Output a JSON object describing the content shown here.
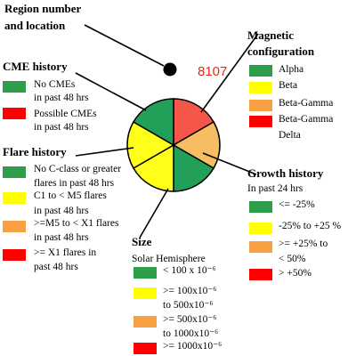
{
  "region": {
    "title": [
      "Region number",
      "and location"
    ],
    "number": "8107"
  },
  "magnetic": {
    "title": [
      "Magnetic",
      "configuration"
    ],
    "items": [
      {
        "color": "#2e9e4a",
        "lines": [
          "Alpha"
        ]
      },
      {
        "color": "#ffff00",
        "lines": [
          "Beta"
        ]
      },
      {
        "color": "#f7a043",
        "lines": [
          "Beta-Gamma"
        ]
      },
      {
        "color": "#ff0000",
        "lines": [
          "Beta-Gamma",
          "Delta"
        ]
      }
    ]
  },
  "cme": {
    "title": [
      "CME history"
    ],
    "items": [
      {
        "color": "#2e9e4a",
        "lines": [
          "No CMEs",
          "in past 48 hrs"
        ]
      },
      {
        "color": "#ff0000",
        "lines": [
          "Possible CMEs",
          "in past 48 hrs"
        ]
      }
    ]
  },
  "flare": {
    "title": [
      "Flare history"
    ],
    "items": [
      {
        "color": "#2e9e4a",
        "lines": [
          "No C-class or greater",
          "flares in past 48 hrs"
        ]
      },
      {
        "color": "#ffff00",
        "lines": [
          "C1 to < M5 flares",
          "in past 48 hrs"
        ]
      },
      {
        "color": "#f7a043",
        "lines": [
          ">=M5 to < X1 flares",
          "in past 48 hrs"
        ]
      },
      {
        "color": "#ff0000",
        "lines": [
          ">= X1 flares in",
          "past 48 hrs"
        ]
      }
    ]
  },
  "growth": {
    "title": [
      "Growth history",
      "In past 24 hrs"
    ],
    "items": [
      {
        "color": "#2e9e4a",
        "lines": [
          "<= -25%"
        ]
      },
      {
        "color": "#ffff00",
        "lines": [
          "-25% to +25 %"
        ]
      },
      {
        "color": "#f7a043",
        "lines": [
          ">= +25% to",
          "< 50%"
        ]
      },
      {
        "color": "#ff0000",
        "lines": [
          "> +50%"
        ]
      }
    ]
  },
  "size": {
    "title": [
      "Size",
      "Solar Hemisphere"
    ],
    "items": [
      {
        "color": "#2e9e4a",
        "lines": [
          "< 100 x 10⁻⁶"
        ]
      },
      {
        "color": "#ffff00",
        "lines": [
          ">= 100x10⁻⁶",
          "to 500x10⁻⁶"
        ]
      },
      {
        "color": "#f7a043",
        "lines": [
          ">= 500x10⁻⁶",
          "to 1000x10⁻⁶"
        ]
      },
      {
        "color": "#ff0000",
        "lines": [
          ">= 1000x10⁻⁶"
        ]
      }
    ]
  }
}
